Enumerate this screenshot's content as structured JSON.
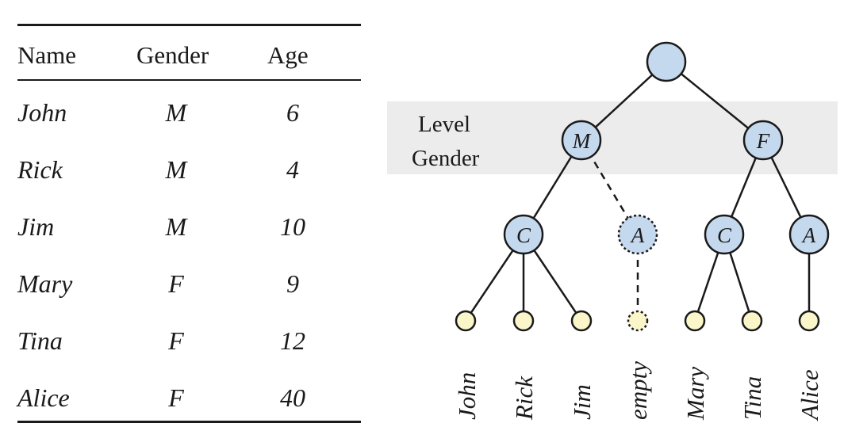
{
  "table": {
    "headers": {
      "name": "Name",
      "gender": "Gender",
      "age": "Age"
    },
    "rows": [
      {
        "name": "John",
        "gender": "M",
        "age": "6"
      },
      {
        "name": "Rick",
        "gender": "M",
        "age": "4"
      },
      {
        "name": "Jim",
        "gender": "M",
        "age": "10"
      },
      {
        "name": "Mary",
        "gender": "F",
        "age": "9"
      },
      {
        "name": "Tina",
        "gender": "F",
        "age": "12"
      },
      {
        "name": "Alice",
        "gender": "F",
        "age": "40"
      }
    ]
  },
  "tree": {
    "level_label": "Level",
    "level_label_2": "Gender",
    "gender_nodes": [
      {
        "label": "M"
      },
      {
        "label": "F"
      }
    ],
    "age_nodes": [
      {
        "label": "C"
      },
      {
        "label": "A"
      },
      {
        "label": "C"
      },
      {
        "label": "A"
      }
    ],
    "leaves": [
      "John",
      "Rick",
      "Jim",
      "empty",
      "Mary",
      "Tina",
      "Alice"
    ]
  },
  "colors": {
    "node_fill": "#c5d9ee",
    "leaf_fill": "#fbf6c9",
    "band_fill": "#ececec",
    "stroke": "#1a1a1a"
  }
}
